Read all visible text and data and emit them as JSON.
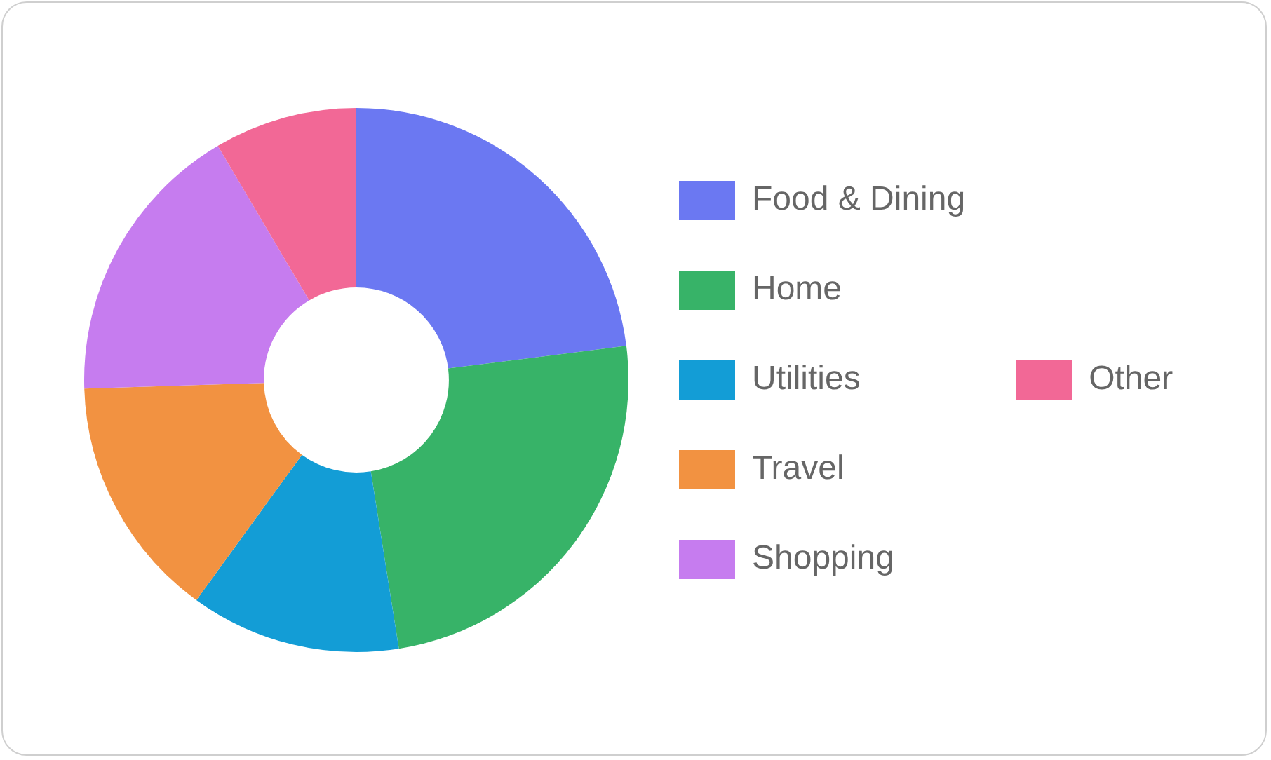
{
  "chart_data": {
    "type": "donut",
    "categories": [
      "Food & Dining",
      "Home",
      "Utilities",
      "Travel",
      "Shopping",
      "Other"
    ],
    "values": [
      23,
      24.5,
      12.5,
      14.5,
      17,
      8.5
    ],
    "colors": [
      "#6b78f2",
      "#37b368",
      "#139dd6",
      "#f29241",
      "#c67cef",
      "#f26896"
    ],
    "legend": "right"
  }
}
